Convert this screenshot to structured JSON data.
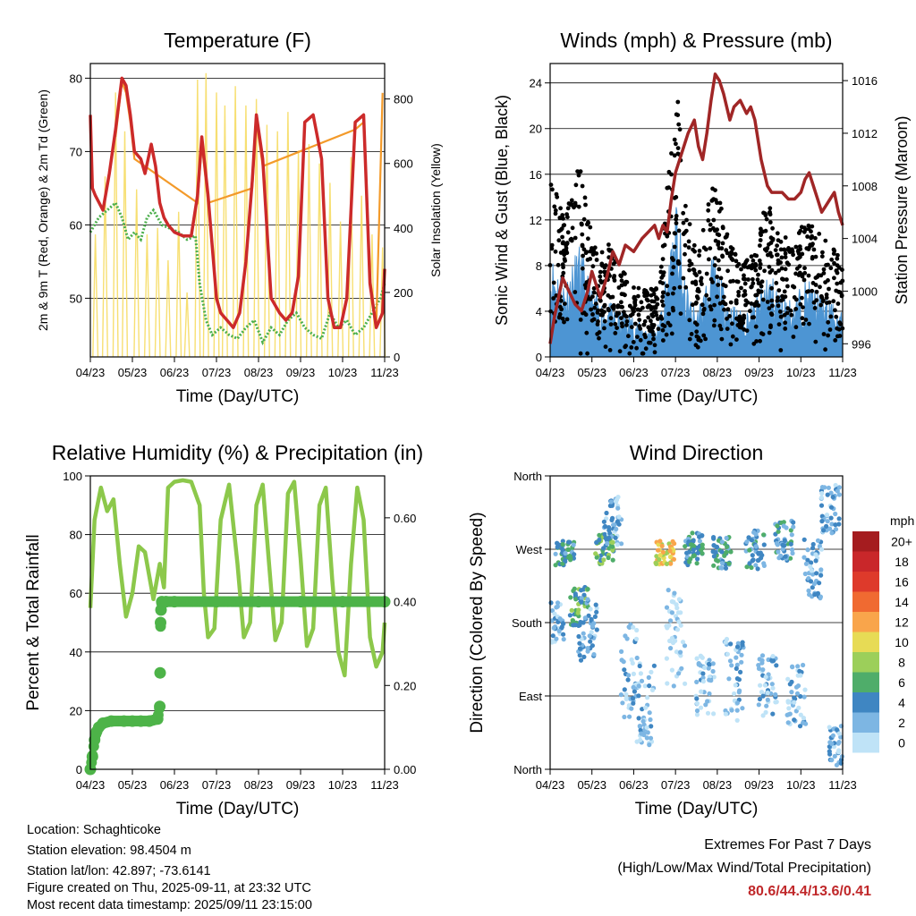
{
  "colors": {
    "red": "#cc2a2a",
    "orange": "#f39a2a",
    "green": "#4caf4c",
    "yellow": "#f6dc63",
    "maroon": "#a02626",
    "blue": "#4d95d3",
    "black": "#000000",
    "rh": "#8cc84b",
    "precip": "#4db348"
  },
  "chart_data": [
    {
      "type": "line",
      "title": "Temperature (F)",
      "xlabel": "Time (Day/UTC)",
      "ylabel": "2m & 9m T (Red, Orange) & 2m Td (Green)",
      "y2label": "Solar Insolation (Yellow)",
      "x_ticks": [
        "04/23",
        "05/23",
        "06/23",
        "07/23",
        "08/23",
        "09/23",
        "10/23",
        "11/23"
      ],
      "ylim": [
        42,
        82
      ],
      "y_ticks": [
        50,
        60,
        70,
        80
      ],
      "y2lim": [
        0,
        910
      ],
      "y2_ticks": [
        0,
        200,
        400,
        600,
        800
      ],
      "xlim": [
        0,
        7
      ],
      "grid": "horizontal",
      "series": [
        {
          "role": "temperature_2m",
          "color": "#cc2a2a",
          "x": [
            0,
            0.05,
            0.12,
            0.3,
            0.45,
            0.6,
            0.75,
            0.85,
            0.95,
            1.05,
            1.2,
            1.3,
            1.45,
            1.55,
            1.65,
            1.75,
            1.85,
            2.0,
            2.2,
            2.4,
            2.55,
            2.65,
            2.8,
            3.0,
            3.1,
            3.25,
            3.4,
            3.55,
            3.7,
            3.85,
            3.95,
            4.1,
            4.3,
            4.5,
            4.65,
            4.8,
            4.95,
            5.1,
            5.3,
            5.5,
            5.65,
            5.8,
            5.95,
            6.1,
            6.3,
            6.5,
            6.65,
            6.8,
            6.95,
            7.0
          ],
          "y": [
            75,
            65,
            64,
            62,
            67,
            73,
            80,
            79,
            75,
            70,
            69,
            67,
            71,
            68,
            63,
            61,
            60,
            59,
            58.5,
            58.5,
            64,
            72,
            64,
            50,
            48,
            47,
            46,
            48,
            55,
            66,
            75,
            69,
            50,
            48,
            47,
            48,
            53,
            74,
            75,
            69,
            50,
            46,
            46,
            50,
            74,
            75,
            52,
            46,
            48,
            54
          ]
        },
        {
          "role": "temperature_9m",
          "color": "#f39a2a",
          "x": [
            0.6,
            0.75,
            0.85,
            0.95,
            1.05,
            2.55,
            2.65,
            2.8,
            3.85,
            3.95,
            4.1,
            6.3,
            6.5,
            6.65,
            6.8,
            6.95
          ],
          "y": [
            72,
            79.5,
            78,
            74,
            69,
            63,
            71,
            63,
            65,
            74,
            68,
            73,
            74,
            53,
            46,
            78
          ]
        },
        {
          "role": "dewpoint_2m",
          "color": "#4caf4c",
          "x": [
            0,
            0.1,
            0.2,
            0.3,
            0.4,
            0.6,
            0.75,
            0.9,
            1.05,
            1.2,
            1.35,
            1.5,
            1.7,
            1.9,
            2.1,
            2.3,
            2.5,
            2.6,
            2.75,
            2.9,
            3.1,
            3.3,
            3.5,
            3.7,
            3.9,
            4.1,
            4.3,
            4.5,
            4.7,
            4.9,
            5.1,
            5.3,
            5.5,
            5.7,
            5.9,
            6.1,
            6.3,
            6.5,
            6.7,
            6.9,
            7.0
          ],
          "y": [
            59,
            60,
            61,
            61.5,
            62,
            63,
            61,
            58,
            59,
            58,
            61,
            62,
            60,
            59.5,
            59,
            58,
            58.5,
            52,
            47,
            45,
            46,
            45,
            44.5,
            46,
            47,
            44,
            46,
            45,
            47,
            48,
            46,
            45,
            44.5,
            48,
            46,
            47,
            45,
            46,
            48,
            50,
            52
          ]
        },
        {
          "role": "solar_insolation",
          "color": "#f6dc63",
          "axis": "y2",
          "peaks_x": [
            0.12,
            0.35,
            0.6,
            0.82,
            1.1,
            1.35,
            1.6,
            1.85,
            2.1,
            2.3,
            2.55,
            2.75,
            3.0,
            3.2,
            3.45,
            3.7,
            3.95,
            4.2,
            4.45,
            4.7,
            4.95,
            5.2,
            5.45,
            5.7,
            5.95,
            6.2,
            6.45,
            6.7,
            6.95
          ],
          "peaks_y": [
            380,
            560,
            820,
            700,
            520,
            380,
            400,
            300,
            450,
            200,
            860,
            880,
            820,
            780,
            840,
            780,
            800,
            720,
            700,
            760,
            640,
            660,
            600,
            540,
            420,
            620,
            500,
            380,
            340
          ]
        }
      ]
    },
    {
      "type": "line",
      "title": "Winds (mph) & Pressure (mb)",
      "xlabel": "Time (Day/UTC)",
      "ylabel": "Sonic Wind & Gust (Blue, Black)",
      "y2label": "Station Pressure (Maroon)",
      "x_ticks": [
        "04/23",
        "05/23",
        "06/23",
        "07/23",
        "08/23",
        "09/23",
        "10/23",
        "11/23"
      ],
      "ylim": [
        0,
        25.7
      ],
      "y_ticks": [
        0,
        4,
        8,
        12,
        16,
        20,
        24
      ],
      "y2lim": [
        995,
        1017.3
      ],
      "y2_ticks": [
        996,
        1000,
        1004,
        1008,
        1012,
        1016
      ],
      "xlim": [
        0,
        7
      ],
      "grid": "horizontal",
      "series": [
        {
          "role": "station_pressure",
          "color": "#a02626",
          "axis": "y2",
          "x": [
            0,
            0.1,
            0.2,
            0.3,
            0.45,
            0.6,
            0.75,
            0.9,
            1.0,
            1.1,
            1.2,
            1.35,
            1.5,
            1.65,
            1.8,
            2.0,
            2.2,
            2.35,
            2.5,
            2.6,
            2.7,
            2.8,
            2.9,
            3.0,
            3.1,
            3.2,
            3.3,
            3.45,
            3.55,
            3.65,
            3.75,
            3.85,
            3.95,
            4.05,
            4.15,
            4.3,
            4.4,
            4.55,
            4.7,
            4.8,
            4.9,
            5.05,
            5.2,
            5.3,
            5.4,
            5.55,
            5.7,
            5.85,
            6.0,
            6.1,
            6.2,
            6.3,
            6.4,
            6.5,
            6.6,
            6.7,
            6.8,
            6.9,
            7.0
          ],
          "y": [
            996,
            998,
            999.5,
            1001,
            1000,
            999,
            998.5,
            1000,
            1001.5,
            1000.5,
            999.5,
            1001,
            1003,
            1002,
            1003.5,
            1003,
            1004,
            1004.5,
            1005,
            1004,
            1005,
            1004.5,
            1007,
            1009,
            1010,
            1011,
            1012,
            1013,
            1011,
            1010,
            1012,
            1014.5,
            1016.5,
            1016,
            1015,
            1013,
            1014,
            1014.5,
            1013.5,
            1014,
            1013,
            1010,
            1008,
            1007.5,
            1007.5,
            1007.5,
            1007,
            1007,
            1007.5,
            1008.5,
            1009,
            1008,
            1007,
            1006,
            1006.5,
            1007,
            1007.5,
            1006,
            1005
          ]
        },
        {
          "role": "wind_gust",
          "color": "#000000",
          "style": "points",
          "peaks_x": [
            0.1,
            0.35,
            0.7,
            0.85,
            1.0,
            1.2,
            1.4,
            1.6,
            1.9,
            2.2,
            2.6,
            2.9,
            3.05,
            3.2,
            3.5,
            3.9,
            4.3,
            4.6,
            4.9,
            5.2,
            5.5,
            5.8,
            6.1,
            6.4,
            6.7,
            6.95
          ],
          "peaks_y": [
            16,
            12,
            18,
            14,
            12,
            9,
            10,
            8,
            7,
            6,
            6,
            20,
            24,
            14,
            9,
            16,
            10,
            8,
            10,
            14,
            11,
            10,
            12,
            11,
            10,
            9
          ]
        },
        {
          "role": "sonic_wind",
          "color": "#4d95d3",
          "style": "fill",
          "peaks_x": [
            0.1,
            0.35,
            0.7,
            0.85,
            1.0,
            1.2,
            1.4,
            1.6,
            1.9,
            2.2,
            2.6,
            2.9,
            3.05,
            3.2,
            3.5,
            3.9,
            4.3,
            4.6,
            4.9,
            5.2,
            5.5,
            5.8,
            6.1,
            6.4,
            6.7,
            6.95
          ],
          "peaks_y": [
            9,
            7,
            10,
            8,
            6,
            5,
            5,
            4,
            4,
            3,
            3,
            11,
            14,
            7,
            4,
            9,
            5,
            4,
            5,
            8,
            6,
            5,
            7,
            6,
            5,
            4
          ]
        }
      ]
    },
    {
      "type": "line",
      "title": "Relative Humidity (%) & Precipitation (in)",
      "xlabel": "Time (Day/UTC)",
      "ylabel": "Percent & Total Rainfall",
      "x_ticks": [
        "04/23",
        "05/23",
        "06/23",
        "07/23",
        "08/23",
        "09/23",
        "10/23",
        "11/23"
      ],
      "ylim": [
        0,
        100
      ],
      "y_ticks": [
        0,
        20,
        40,
        60,
        80,
        100
      ],
      "y2lim": [
        0,
        0.7
      ],
      "y2_ticks": [
        "0.00",
        "0.20",
        "0.40",
        "0.60"
      ],
      "xlim": [
        0,
        7
      ],
      "grid": "horizontal",
      "series": [
        {
          "role": "relative_humidity",
          "color": "#8cc84b",
          "x": [
            0,
            0.1,
            0.25,
            0.4,
            0.55,
            0.7,
            0.85,
            1.0,
            1.15,
            1.3,
            1.5,
            1.65,
            1.75,
            1.85,
            2.0,
            2.2,
            2.4,
            2.6,
            2.7,
            2.8,
            2.95,
            3.1,
            3.3,
            3.5,
            3.65,
            3.8,
            3.95,
            4.1,
            4.25,
            4.4,
            4.55,
            4.7,
            4.85,
            5.0,
            5.15,
            5.3,
            5.45,
            5.6,
            5.75,
            5.9,
            6.05,
            6.2,
            6.35,
            6.5,
            6.65,
            6.8,
            6.95,
            7.0
          ],
          "y": [
            55,
            85,
            96,
            88,
            92,
            70,
            52,
            60,
            76,
            74,
            58,
            70,
            62,
            96,
            98,
            98.5,
            98,
            90,
            60,
            45,
            48,
            85,
            97,
            70,
            45,
            50,
            90,
            97,
            70,
            44,
            50,
            94,
            98,
            72,
            42,
            48,
            90,
            96,
            65,
            40,
            32,
            70,
            96,
            85,
            45,
            35,
            40,
            50
          ]
        },
        {
          "role": "total_precipitation",
          "color": "#4db348",
          "axis": "y2",
          "style": "points",
          "x": [
            0,
            0.05,
            0.1,
            0.15,
            0.2,
            0.3,
            0.5,
            0.8,
            1.0,
            1.2,
            1.4,
            1.6,
            1.65,
            1.66,
            1.67,
            1.68,
            1.7,
            1.8,
            2.0,
            3.0,
            4.0,
            5.0,
            6.0,
            7.0
          ],
          "y": [
            0,
            0.03,
            0.07,
            0.09,
            0.1,
            0.11,
            0.115,
            0.115,
            0.115,
            0.115,
            0.115,
            0.12,
            0.15,
            0.23,
            0.35,
            0.38,
            0.4,
            0.4,
            0.4,
            0.4,
            0.4,
            0.4,
            0.4,
            0.4
          ]
        }
      ]
    },
    {
      "type": "scatter",
      "title": "Wind Direction",
      "xlabel": "Time (Day/UTC)",
      "ylabel": "Direction (Colored By Speed)",
      "x_ticks": [
        "04/23",
        "05/23",
        "06/23",
        "07/23",
        "08/23",
        "09/23",
        "10/23",
        "11/23"
      ],
      "y_ticks": [
        "North",
        "West",
        "South",
        "East",
        "North"
      ],
      "ylim": [
        0,
        360
      ],
      "xlim": [
        0,
        7
      ],
      "grid": "horizontal",
      "colorbar": {
        "title": "mph",
        "labels": [
          "20+",
          "18",
          "16",
          "14",
          "12",
          "10",
          "8",
          "6",
          "4",
          "2",
          "0"
        ],
        "colors": [
          "#a51c1f",
          "#c9272a",
          "#de3a2b",
          "#f06a31",
          "#f9a54b",
          "#e7db55",
          "#9ccf5a",
          "#4fad6a",
          "#3f86c2",
          "#7db6e3",
          "#bfe3f7"
        ]
      },
      "clusters": [
        {
          "x": 0.1,
          "y": 180,
          "spread": 25,
          "speed": 3
        },
        {
          "x": 0.35,
          "y": 265,
          "spread": 15,
          "speed": 5
        },
        {
          "x": 0.7,
          "y": 200,
          "spread": 25,
          "speed": 6
        },
        {
          "x": 0.9,
          "y": 170,
          "spread": 40,
          "speed": 3
        },
        {
          "x": 1.3,
          "y": 270,
          "spread": 20,
          "speed": 7
        },
        {
          "x": 1.5,
          "y": 305,
          "spread": 30,
          "speed": 3
        },
        {
          "x": 1.9,
          "y": 120,
          "spread": 60,
          "speed": 2
        },
        {
          "x": 2.3,
          "y": 80,
          "spread": 50,
          "speed": 2
        },
        {
          "x": 2.75,
          "y": 265,
          "spread": 15,
          "speed": 11
        },
        {
          "x": 3.0,
          "y": 160,
          "spread": 60,
          "speed": 1
        },
        {
          "x": 3.45,
          "y": 270,
          "spread": 20,
          "speed": 5
        },
        {
          "x": 3.7,
          "y": 100,
          "spread": 40,
          "speed": 2
        },
        {
          "x": 4.1,
          "y": 265,
          "spread": 20,
          "speed": 5
        },
        {
          "x": 4.4,
          "y": 110,
          "spread": 50,
          "speed": 2
        },
        {
          "x": 4.9,
          "y": 270,
          "spread": 25,
          "speed": 4
        },
        {
          "x": 5.2,
          "y": 100,
          "spread": 40,
          "speed": 2
        },
        {
          "x": 5.6,
          "y": 280,
          "spread": 25,
          "speed": 4
        },
        {
          "x": 5.9,
          "y": 90,
          "spread": 40,
          "speed": 2
        },
        {
          "x": 6.3,
          "y": 250,
          "spread": 40,
          "speed": 3
        },
        {
          "x": 6.7,
          "y": 320,
          "spread": 30,
          "speed": 3
        },
        {
          "x": 6.9,
          "y": 30,
          "spread": 25,
          "speed": 3
        }
      ]
    }
  ],
  "station": {
    "location": "Location: Schaghticoke",
    "elevation": "Station elevation: 98.4504 m",
    "latlon": "Station lat/lon: 42.897; -73.6141",
    "created": "Figure created on Thu, 2025-09-11, at 23:32 UTC",
    "recent": "Most recent data timestamp: 2025/09/11 23:15:00"
  },
  "extremes": {
    "title": "Extremes For Past 7 Days",
    "subtitle": "(High/Low/Max Wind/Total Precipitation)",
    "values": "80.6/44.4/13.6/0.41"
  }
}
